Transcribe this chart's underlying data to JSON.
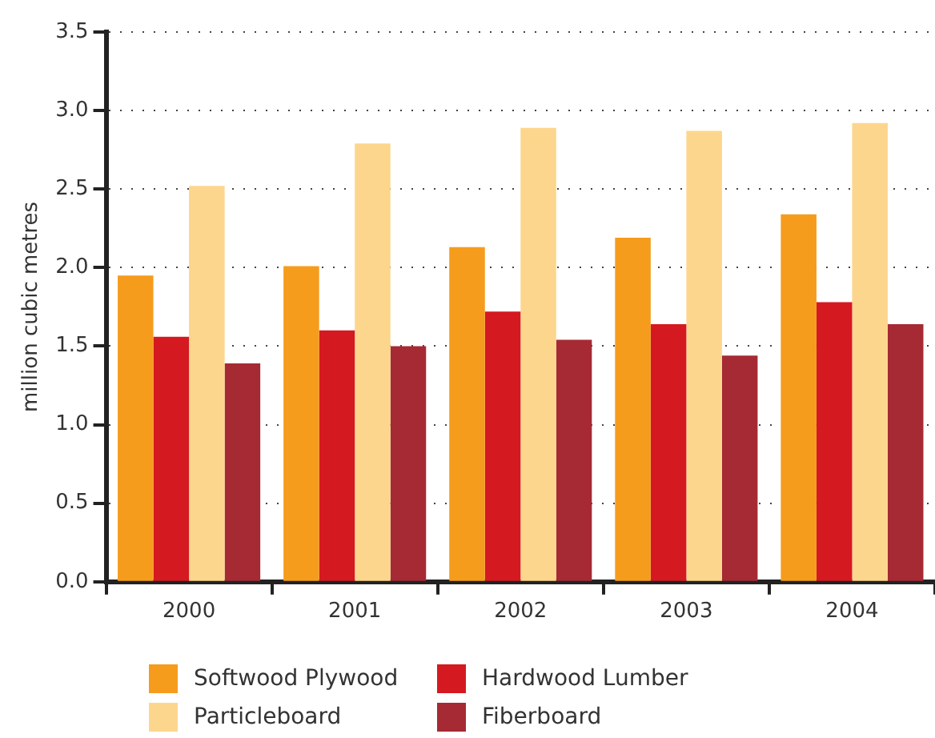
{
  "chart_data": {
    "type": "bar",
    "ylabel": "million cubic metres",
    "categories": [
      "2000",
      "2001",
      "2002",
      "2003",
      "2004"
    ],
    "series": [
      {
        "name": "Softwood Plywood",
        "color": "#f59c1d",
        "values": [
          1.95,
          2.01,
          2.13,
          2.19,
          2.34
        ]
      },
      {
        "name": "Hardwood Lumber",
        "color": "#d51920",
        "values": [
          1.56,
          1.6,
          1.72,
          1.64,
          1.78
        ]
      },
      {
        "name": "Particleboard",
        "color": "#fdd68d",
        "values": [
          2.52,
          2.79,
          2.89,
          2.87,
          2.92
        ]
      },
      {
        "name": "Fiberboard",
        "color": "#a52a33",
        "values": [
          1.39,
          1.5,
          1.54,
          1.44,
          1.64
        ]
      }
    ],
    "ylim": [
      0,
      3.5
    ],
    "yticks": [
      {
        "value": 0,
        "label": "0.0"
      },
      0.5,
      {
        "value": 1,
        "label": "1.0"
      },
      1.5,
      {
        "value": 2,
        "label": "2.0"
      },
      2.5,
      {
        "value": 3,
        "label": "3.0"
      },
      3.5
    ],
    "grid": "y",
    "legend": "bottom"
  }
}
